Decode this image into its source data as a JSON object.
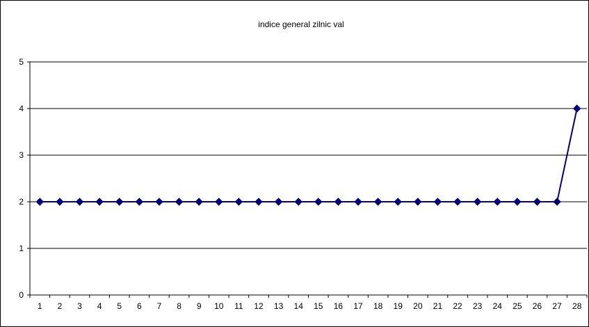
{
  "chart_data": {
    "type": "line",
    "title": "indice general zilnic val",
    "xlabel": "",
    "ylabel": "",
    "categories": [
      "1",
      "2",
      "3",
      "4",
      "5",
      "6",
      "7",
      "8",
      "9",
      "10",
      "11",
      "12",
      "13",
      "14",
      "15",
      "16",
      "17",
      "18",
      "19",
      "20",
      "21",
      "22",
      "23",
      "24",
      "25",
      "26",
      "27",
      "28"
    ],
    "series": [
      {
        "values": [
          2,
          2,
          2,
          2,
          2,
          2,
          2,
          2,
          2,
          2,
          2,
          2,
          2,
          2,
          2,
          2,
          2,
          2,
          2,
          2,
          2,
          2,
          2,
          2,
          2,
          2,
          2,
          4
        ]
      }
    ],
    "ylim": [
      0,
      5
    ],
    "yticks": [
      0,
      1,
      2,
      3,
      4,
      5
    ],
    "grid": true,
    "legend": "none",
    "colors": {
      "line": "#000080",
      "marker": "#000080",
      "grid": "#000000",
      "axis": "#000000",
      "plot_bg": "#ffffff"
    },
    "marker": "diamond"
  }
}
